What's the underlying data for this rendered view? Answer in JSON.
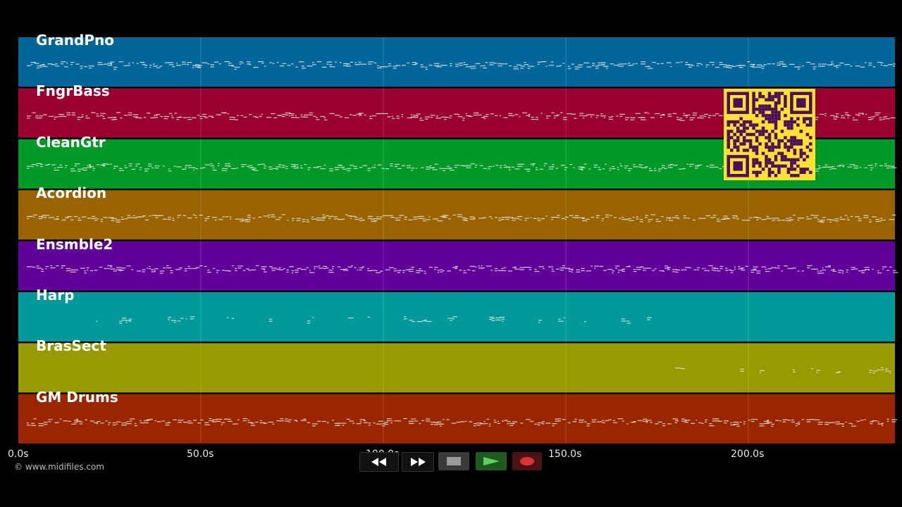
{
  "tracks": [
    {
      "name": "GrandPno",
      "color": "#006699"
    },
    {
      "name": "FngrBass",
      "color": "#990030"
    },
    {
      "name": "CleanGtr",
      "color": "#009926"
    },
    {
      "name": "Acordion",
      "color": "#996300"
    },
    {
      "name": "Ensmble2",
      "color": "#600099"
    },
    {
      "name": "Harp",
      "color": "#009999"
    },
    {
      "name": "BrasSect",
      "color": "#999900"
    },
    {
      "name": "GM Drums",
      "color": "#992600"
    }
  ],
  "timeline": {
    "ticks": [
      "0.0s",
      "50.0s",
      "100.0s",
      "150.0s",
      "200.0s"
    ]
  },
  "footer": {
    "copyright": "© www.midifiles.com"
  },
  "transport": {
    "buttons": [
      {
        "name": "rewind",
        "icon": "rewind-icon"
      },
      {
        "name": "fast-forward",
        "icon": "fast-forward-icon"
      },
      {
        "name": "stop",
        "icon": "stop-icon"
      },
      {
        "name": "play",
        "icon": "play-icon"
      },
      {
        "name": "record",
        "icon": "record-icon"
      }
    ]
  },
  "qr_code": {
    "fg": "#4a0f5a",
    "bg": "#ffe033"
  }
}
